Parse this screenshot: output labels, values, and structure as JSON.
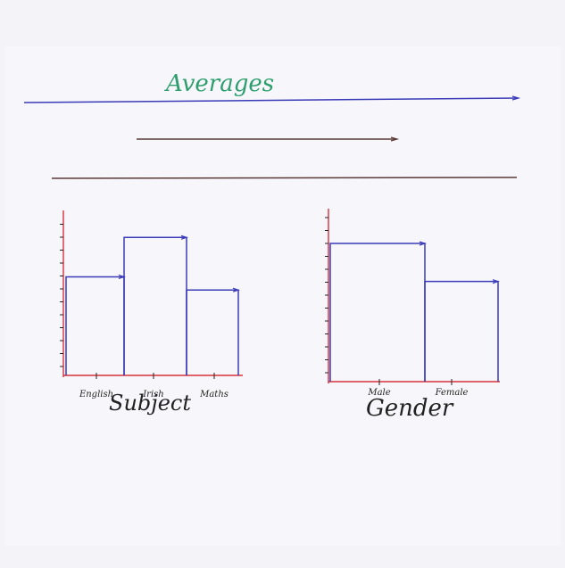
{
  "title": "Averages",
  "colors": {
    "title_ink": "#2e9e6e",
    "blue_ink": "#3b3bb8",
    "dark_ink": "#5a3a38",
    "red_ink": "#d8303a",
    "black_ink": "#222222"
  },
  "chart_data": [
    {
      "type": "bar",
      "categories": [
        "English",
        "Irish",
        "Maths"
      ],
      "values": [
        6,
        8.4,
        5.2
      ],
      "xlabel": "Subject",
      "ylabel": "",
      "ylim": [
        0,
        9.5
      ],
      "grid": false
    },
    {
      "type": "bar",
      "categories": [
        "Male",
        "Female"
      ],
      "values": [
        8,
        5.8
      ],
      "xlabel": "Gender",
      "ylabel": "",
      "ylim": [
        0,
        9.5
      ],
      "grid": false
    }
  ]
}
